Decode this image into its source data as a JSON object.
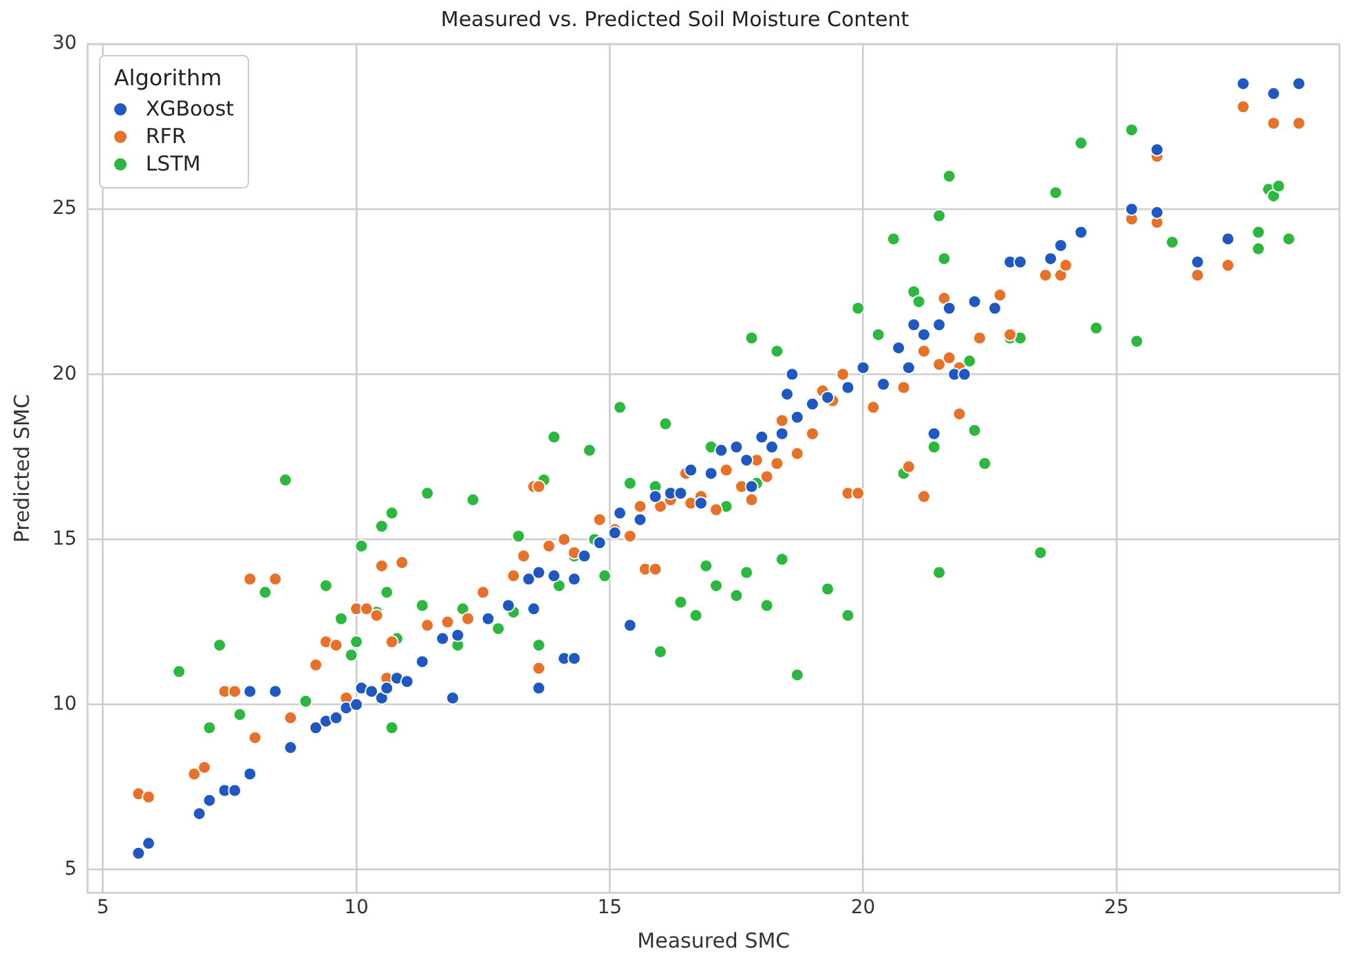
{
  "chart_data": {
    "type": "scatter",
    "title": "Measured vs. Predicted Soil Moisture Content",
    "xlabel": "Measured SMC",
    "ylabel": "Predicted SMC",
    "legend_title": "Algorithm",
    "legend": "top left",
    "grid": true,
    "marker": "circle",
    "xlim": [
      4.7,
      29.4
    ],
    "ylim": [
      4.3,
      30
    ],
    "xticks": [
      5,
      10,
      15,
      20,
      25
    ],
    "yticks": [
      5,
      10,
      15,
      20,
      25,
      30
    ],
    "series": [
      {
        "name": "XGBoost",
        "color": "#1f58c0",
        "x": [
          5.7,
          5.9,
          6.9,
          7.1,
          7.4,
          7.6,
          7.9,
          7.9,
          8.4,
          8.7,
          9.2,
          9.4,
          9.6,
          9.8,
          10.0,
          10.1,
          10.3,
          10.5,
          10.6,
          10.8,
          11.0,
          11.3,
          11.7,
          11.9,
          12.0,
          12.6,
          13.0,
          13.4,
          13.5,
          13.6,
          13.6,
          13.9,
          14.1,
          14.3,
          14.3,
          14.5,
          14.8,
          15.1,
          15.2,
          15.4,
          15.6,
          15.9,
          16.2,
          16.4,
          16.6,
          16.8,
          17.0,
          17.2,
          17.5,
          17.7,
          17.8,
          18.0,
          18.2,
          18.4,
          18.5,
          18.6,
          18.7,
          19.0,
          19.3,
          19.7,
          20.0,
          20.4,
          20.7,
          20.9,
          21.0,
          21.2,
          21.4,
          21.5,
          21.7,
          21.8,
          22.0,
          22.2,
          22.6,
          22.9,
          23.1,
          23.7,
          23.9,
          24.3,
          25.3,
          25.8,
          25.8,
          26.6,
          27.2,
          27.5,
          28.1,
          28.6
        ],
        "values": [
          5.5,
          5.8,
          6.7,
          7.1,
          7.4,
          7.4,
          7.9,
          10.4,
          10.4,
          8.7,
          9.3,
          9.5,
          9.6,
          9.9,
          10.0,
          10.5,
          10.4,
          10.2,
          10.5,
          10.8,
          10.7,
          11.3,
          12.0,
          10.2,
          12.1,
          12.6,
          13.0,
          13.8,
          12.9,
          10.5,
          14.0,
          13.9,
          11.4,
          11.4,
          13.8,
          14.5,
          14.9,
          15.2,
          15.8,
          12.4,
          15.6,
          16.3,
          16.4,
          16.4,
          17.1,
          16.1,
          17.0,
          17.7,
          17.8,
          17.4,
          16.6,
          18.1,
          17.8,
          18.2,
          19.4,
          20.0,
          18.7,
          19.1,
          19.3,
          19.6,
          20.2,
          19.7,
          20.8,
          20.2,
          21.5,
          21.2,
          18.2,
          21.5,
          22.0,
          20.0,
          20.0,
          22.2,
          22.0,
          23.4,
          23.4,
          23.5,
          23.9,
          24.3,
          25.0,
          24.9,
          26.8,
          23.4,
          24.1,
          28.8,
          28.5,
          28.8
        ]
      },
      {
        "name": "RFR",
        "color": "#e8712a",
        "x": [
          5.7,
          5.9,
          6.8,
          7.0,
          7.4,
          7.6,
          7.9,
          8.0,
          8.4,
          8.7,
          9.2,
          9.4,
          9.6,
          9.8,
          10.0,
          10.2,
          10.4,
          10.5,
          10.7,
          10.9,
          10.6,
          11.4,
          11.8,
          12.2,
          12.5,
          13.1,
          13.3,
          13.5,
          13.6,
          13.6,
          13.8,
          14.1,
          14.3,
          14.8,
          15.1,
          15.4,
          15.6,
          15.7,
          15.9,
          16.0,
          16.2,
          16.5,
          16.6,
          16.8,
          17.1,
          17.3,
          17.6,
          17.8,
          17.9,
          18.1,
          18.3,
          18.4,
          18.7,
          19.0,
          19.2,
          19.4,
          19.6,
          19.7,
          19.9,
          20.2,
          20.8,
          20.9,
          21.2,
          21.2,
          21.5,
          21.6,
          21.7,
          21.9,
          21.9,
          22.3,
          22.7,
          22.9,
          23.6,
          23.9,
          24.0,
          25.3,
          25.8,
          25.8,
          26.6,
          27.2,
          27.5,
          28.1,
          28.6
        ],
        "values": [
          7.3,
          7.2,
          7.9,
          8.1,
          10.4,
          10.4,
          13.8,
          9.0,
          13.8,
          9.6,
          11.2,
          11.9,
          11.8,
          10.2,
          12.9,
          12.9,
          12.7,
          14.2,
          11.9,
          14.3,
          10.8,
          12.4,
          12.5,
          12.6,
          13.4,
          13.9,
          14.5,
          16.6,
          16.6,
          11.1,
          14.8,
          15.0,
          14.6,
          15.6,
          15.3,
          15.1,
          16.0,
          14.1,
          14.1,
          16.0,
          16.2,
          17.0,
          16.1,
          16.3,
          15.9,
          17.1,
          16.6,
          16.2,
          17.4,
          16.9,
          17.3,
          18.6,
          17.6,
          18.2,
          19.5,
          19.2,
          20.0,
          16.4,
          16.4,
          19.0,
          19.6,
          17.2,
          16.3,
          20.7,
          20.3,
          22.3,
          20.5,
          20.2,
          18.8,
          21.1,
          22.4,
          21.2,
          23.0,
          23.0,
          23.3,
          24.7,
          24.6,
          26.6,
          23.0,
          23.3,
          28.1,
          27.6,
          27.6
        ]
      },
      {
        "name": "LSTM",
        "color": "#2cb83e",
        "x": [
          6.5,
          7.1,
          7.3,
          7.7,
          8.2,
          8.6,
          9.0,
          9.4,
          9.7,
          9.9,
          10.0,
          10.1,
          10.4,
          10.5,
          10.6,
          10.7,
          10.7,
          10.8,
          11.3,
          11.4,
          12.0,
          12.1,
          12.3,
          12.8,
          13.1,
          13.2,
          13.6,
          13.7,
          13.9,
          14.0,
          14.3,
          14.6,
          14.7,
          14.9,
          15.2,
          15.4,
          15.9,
          16.0,
          16.1,
          16.4,
          16.7,
          16.9,
          17.0,
          17.1,
          17.3,
          17.5,
          17.7,
          17.8,
          17.9,
          18.1,
          18.3,
          18.4,
          18.7,
          19.3,
          19.7,
          19.9,
          20.3,
          20.6,
          20.8,
          21.0,
          21.1,
          21.4,
          21.5,
          21.5,
          21.6,
          21.7,
          22.1,
          22.2,
          22.4,
          22.9,
          23.1,
          23.5,
          23.8,
          24.3,
          24.6,
          25.3,
          25.4,
          26.1,
          27.8,
          27.8,
          28.0,
          28.1,
          28.2,
          28.4
        ],
        "values": [
          11.0,
          9.3,
          11.8,
          9.7,
          13.4,
          16.8,
          10.1,
          13.6,
          12.6,
          11.5,
          11.9,
          14.8,
          12.8,
          15.4,
          13.4,
          15.8,
          9.3,
          12.0,
          13.0,
          16.4,
          11.8,
          12.9,
          16.2,
          12.3,
          12.8,
          15.1,
          11.8,
          16.8,
          18.1,
          13.6,
          14.5,
          17.7,
          15.0,
          13.9,
          19.0,
          16.7,
          16.6,
          11.6,
          18.5,
          13.1,
          12.7,
          14.2,
          17.8,
          13.6,
          16.0,
          13.3,
          14.0,
          21.1,
          16.7,
          13.0,
          20.7,
          14.4,
          10.9,
          13.5,
          12.7,
          22.0,
          21.2,
          24.1,
          17.0,
          22.5,
          22.2,
          17.8,
          14.0,
          24.8,
          23.5,
          26.0,
          20.4,
          18.3,
          17.3,
          21.1,
          21.1,
          14.6,
          25.5,
          27.0,
          21.4,
          27.4,
          21.0,
          24.0,
          24.3,
          23.8,
          25.6,
          25.4,
          25.7,
          24.1
        ]
      }
    ]
  }
}
